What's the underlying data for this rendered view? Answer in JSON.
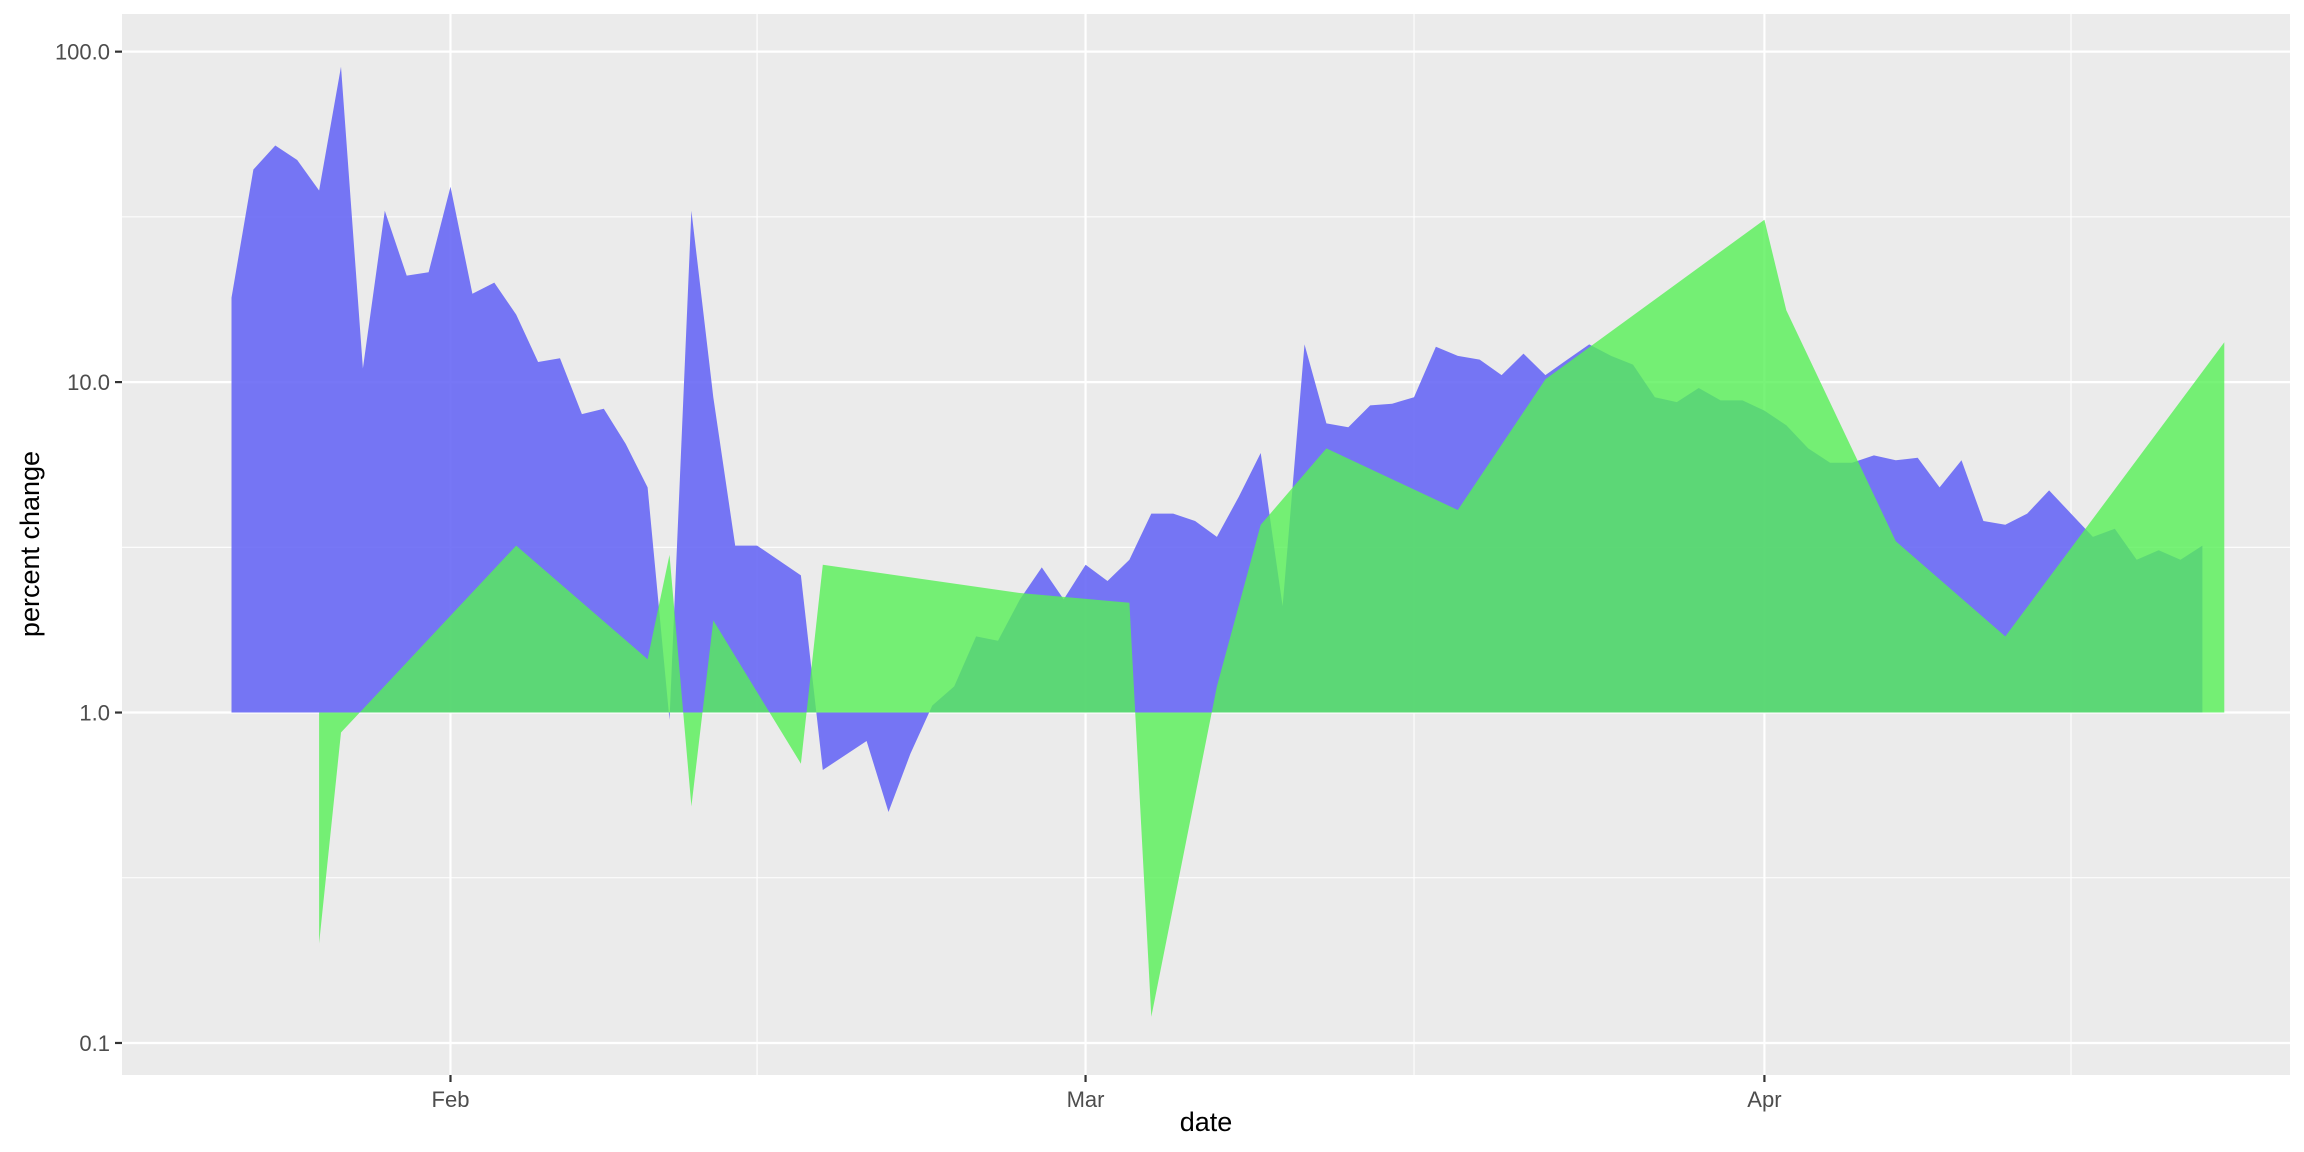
{
  "chart_data": {
    "type": "area",
    "title": "",
    "xlabel": "date",
    "ylabel": "percent change",
    "y_scale": "log10",
    "ylim": [
      0.08,
      130
    ],
    "xlim": [
      "2020-01-17",
      "2020-04-25"
    ],
    "baseline": 1,
    "grid": true,
    "legend": "none",
    "y_ticks": [
      {
        "value": 0.1,
        "label": "0.1"
      },
      {
        "value": 1,
        "label": "1.0"
      },
      {
        "value": 10,
        "label": "10.0"
      },
      {
        "value": 100,
        "label": "100.0"
      }
    ],
    "x_ticks": [
      {
        "value": "2020-02-01",
        "label": "Feb"
      },
      {
        "value": "2020-03-01",
        "label": "Mar"
      },
      {
        "value": "2020-04-01",
        "label": "Apr"
      }
    ],
    "x_minor_ticks": [
      "2020-02-15",
      "2020-03-16",
      "2020-04-15"
    ],
    "series": [
      {
        "color": "#6464f5",
        "opacity": 0.88,
        "points": [
          [
            "2020-01-22",
            18
          ],
          [
            "2020-01-23",
            44
          ],
          [
            "2020-01-24",
            52
          ],
          [
            "2020-01-25",
            47
          ],
          [
            "2020-01-26",
            38
          ],
          [
            "2020-01-27",
            90
          ],
          [
            "2020-01-28",
            11
          ],
          [
            "2020-01-29",
            33
          ],
          [
            "2020-01-30",
            21
          ],
          [
            "2020-01-31",
            21.5
          ],
          [
            "2020-02-01",
            39
          ],
          [
            "2020-02-02",
            18.5
          ],
          [
            "2020-02-03",
            20
          ],
          [
            "2020-02-04",
            16
          ],
          [
            "2020-02-05",
            11.5
          ],
          [
            "2020-02-06",
            11.8
          ],
          [
            "2020-02-07",
            8
          ],
          [
            "2020-02-08",
            8.3
          ],
          [
            "2020-02-09",
            6.5
          ],
          [
            "2020-02-10",
            4.8
          ],
          [
            "2020-02-11",
            0.95
          ],
          [
            "2020-02-12",
            33
          ],
          [
            "2020-02-13",
            9
          ],
          [
            "2020-02-14",
            3.2
          ],
          [
            "2020-02-15",
            3.2
          ],
          [
            "2020-02-17",
            2.6
          ],
          [
            "2020-02-18",
            0.67
          ],
          [
            "2020-02-20",
            0.82
          ],
          [
            "2020-02-21",
            0.5
          ],
          [
            "2020-02-22",
            0.75
          ],
          [
            "2020-02-23",
            1.05
          ],
          [
            "2020-02-24",
            1.2
          ],
          [
            "2020-02-25",
            1.7
          ],
          [
            "2020-02-26",
            1.65
          ],
          [
            "2020-02-27",
            2.2
          ],
          [
            "2020-02-28",
            2.75
          ],
          [
            "2020-02-29",
            2.2
          ],
          [
            "2020-03-01",
            2.8
          ],
          [
            "2020-03-02",
            2.5
          ],
          [
            "2020-03-03",
            2.9
          ],
          [
            "2020-03-04",
            4
          ],
          [
            "2020-03-05",
            4
          ],
          [
            "2020-03-06",
            3.8
          ],
          [
            "2020-03-07",
            3.4
          ],
          [
            "2020-03-08",
            4.5
          ],
          [
            "2020-03-09",
            6.1
          ],
          [
            "2020-03-10",
            2.1
          ],
          [
            "2020-03-11",
            13
          ],
          [
            "2020-03-12",
            7.5
          ],
          [
            "2020-03-13",
            7.3
          ],
          [
            "2020-03-14",
            8.5
          ],
          [
            "2020-03-15",
            8.6
          ],
          [
            "2020-03-16",
            9
          ],
          [
            "2020-03-17",
            12.8
          ],
          [
            "2020-03-18",
            12
          ],
          [
            "2020-03-19",
            11.7
          ],
          [
            "2020-03-20",
            10.5
          ],
          [
            "2020-03-21",
            12.2
          ],
          [
            "2020-03-22",
            10.5
          ],
          [
            "2020-03-23",
            11.7
          ],
          [
            "2020-03-24",
            13
          ],
          [
            "2020-03-25",
            12
          ],
          [
            "2020-03-26",
            11.3
          ],
          [
            "2020-03-27",
            9
          ],
          [
            "2020-03-28",
            8.7
          ],
          [
            "2020-03-29",
            9.6
          ],
          [
            "2020-03-30",
            8.8
          ],
          [
            "2020-03-31",
            8.8
          ],
          [
            "2020-04-01",
            8.2
          ],
          [
            "2020-04-02",
            7.4
          ],
          [
            "2020-04-03",
            6.3
          ],
          [
            "2020-04-04",
            5.7
          ],
          [
            "2020-04-05",
            5.7
          ],
          [
            "2020-04-06",
            6
          ],
          [
            "2020-04-07",
            5.8
          ],
          [
            "2020-04-08",
            5.9
          ],
          [
            "2020-04-09",
            4.8
          ],
          [
            "2020-04-10",
            5.8
          ],
          [
            "2020-04-11",
            3.8
          ],
          [
            "2020-04-12",
            3.7
          ],
          [
            "2020-04-13",
            4
          ],
          [
            "2020-04-14",
            4.7
          ],
          [
            "2020-04-15",
            4
          ],
          [
            "2020-04-16",
            3.4
          ],
          [
            "2020-04-17",
            3.6
          ],
          [
            "2020-04-18",
            2.9
          ],
          [
            "2020-04-19",
            3.1
          ],
          [
            "2020-04-20",
            2.9
          ],
          [
            "2020-04-21",
            3.2
          ]
        ]
      },
      {
        "color": "#56f056",
        "opacity": 0.8,
        "points": [
          [
            "2020-01-26",
            0.2
          ],
          [
            "2020-01-27",
            0.87
          ],
          [
            "2020-02-04",
            3.2
          ],
          [
            "2020-02-10",
            1.45
          ],
          [
            "2020-02-11",
            3
          ],
          [
            "2020-02-12",
            0.52
          ],
          [
            "2020-02-13",
            1.9
          ],
          [
            "2020-02-17",
            0.7
          ],
          [
            "2020-02-18",
            2.8
          ],
          [
            "2020-02-27",
            2.3
          ],
          [
            "2020-03-03",
            2.15
          ],
          [
            "2020-03-04",
            0.12
          ],
          [
            "2020-03-07",
            1.2
          ],
          [
            "2020-03-09",
            3.7
          ],
          [
            "2020-03-12",
            6.3
          ],
          [
            "2020-03-18",
            4.1
          ],
          [
            "2020-03-22",
            10.2
          ],
          [
            "2020-04-01",
            31
          ],
          [
            "2020-04-02",
            16.5
          ],
          [
            "2020-04-07",
            3.3
          ],
          [
            "2020-04-12",
            1.7
          ],
          [
            "2020-04-22",
            13.2
          ]
        ]
      }
    ]
  }
}
